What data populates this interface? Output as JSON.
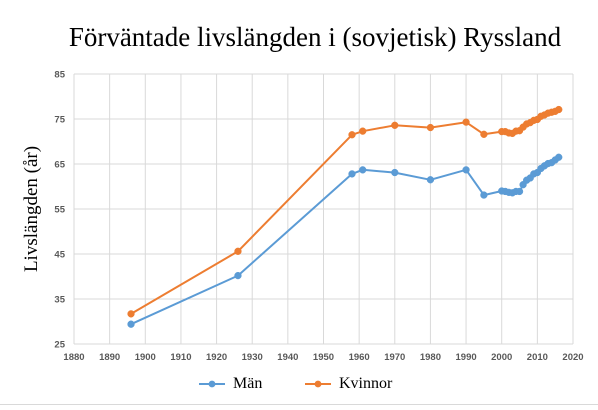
{
  "chart_data": {
    "type": "line",
    "title": "Förväntade livslängden i (sovjetisk) Ryssland",
    "xlabel": "",
    "ylabel": "Livslängden (år)",
    "xlim": [
      1880,
      2020
    ],
    "ylim": [
      25,
      85
    ],
    "x_ticks": [
      "1880",
      "1890",
      "1900",
      "1910",
      "1920",
      "1930",
      "1940",
      "1950",
      "1960",
      "1970",
      "1980",
      "1990",
      "2000",
      "2010",
      "2020"
    ],
    "y_ticks": [
      "25",
      "35",
      "45",
      "55",
      "65",
      "75",
      "85"
    ],
    "grid": true,
    "legend_position": "bottom",
    "series": [
      {
        "name": "Män",
        "color": "#5B9BD5",
        "points": [
          [
            1896,
            29.4
          ],
          [
            1926,
            40.2
          ],
          [
            1958,
            62.8
          ],
          [
            1961,
            63.7
          ],
          [
            1970,
            63.1
          ],
          [
            1980,
            61.5
          ],
          [
            1990,
            63.7
          ],
          [
            1995,
            58.1
          ],
          [
            2000,
            59.0
          ],
          [
            2001,
            58.9
          ],
          [
            2002,
            58.7
          ],
          [
            2003,
            58.6
          ],
          [
            2004,
            58.9
          ],
          [
            2005,
            58.9
          ],
          [
            2006,
            60.4
          ],
          [
            2007,
            61.4
          ],
          [
            2008,
            61.9
          ],
          [
            2009,
            62.8
          ],
          [
            2010,
            63.1
          ],
          [
            2011,
            64.0
          ],
          [
            2012,
            64.6
          ],
          [
            2013,
            65.1
          ],
          [
            2014,
            65.3
          ],
          [
            2015,
            65.9
          ],
          [
            2016,
            66.5
          ]
        ]
      },
      {
        "name": "Kvinnor",
        "color": "#ED7D31",
        "points": [
          [
            1896,
            31.7
          ],
          [
            1926,
            45.6
          ],
          [
            1958,
            71.5
          ],
          [
            1961,
            72.3
          ],
          [
            1970,
            73.6
          ],
          [
            1980,
            73.1
          ],
          [
            1990,
            74.3
          ],
          [
            1995,
            71.6
          ],
          [
            2000,
            72.2
          ],
          [
            2001,
            72.2
          ],
          [
            2002,
            71.9
          ],
          [
            2003,
            71.8
          ],
          [
            2004,
            72.3
          ],
          [
            2005,
            72.4
          ],
          [
            2006,
            73.2
          ],
          [
            2007,
            73.9
          ],
          [
            2008,
            74.2
          ],
          [
            2009,
            74.7
          ],
          [
            2010,
            74.9
          ],
          [
            2011,
            75.6
          ],
          [
            2012,
            75.9
          ],
          [
            2013,
            76.3
          ],
          [
            2014,
            76.5
          ],
          [
            2015,
            76.7
          ],
          [
            2016,
            77.1
          ]
        ]
      }
    ]
  }
}
